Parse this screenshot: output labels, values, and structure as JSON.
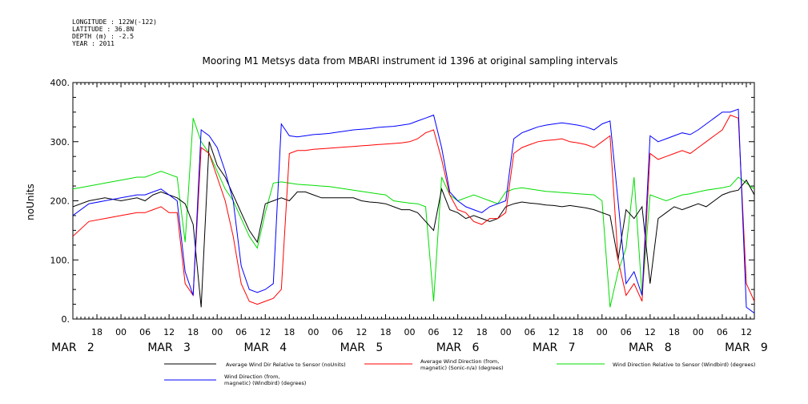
{
  "meta": {
    "longitude": "LONGITUDE : 122W(-122)",
    "latitude": "LATITUDE : 36.8N",
    "depth": "DEPTH (m) : -2.5",
    "year": "YEAR : 2011"
  },
  "chart_data": {
    "type": "line",
    "title": "Mooring M1 Metsys data from MBARI instrument id 1396 at original sampling intervals",
    "ylabel": "noUnits",
    "xlabel": "",
    "ylim": [
      0,
      400
    ],
    "yticks": [
      "0.",
      "100.",
      "200.",
      "300.",
      "400."
    ],
    "xlim_hours": [
      12,
      182
    ],
    "hour_ticks": [
      {
        "h": 18,
        "label": "18"
      },
      {
        "h": 24,
        "label": "00"
      },
      {
        "h": 30,
        "label": "06"
      },
      {
        "h": 36,
        "label": "12"
      },
      {
        "h": 42,
        "label": "18"
      },
      {
        "h": 48,
        "label": "00"
      },
      {
        "h": 54,
        "label": "06"
      },
      {
        "h": 60,
        "label": "12"
      },
      {
        "h": 66,
        "label": "18"
      },
      {
        "h": 72,
        "label": "00"
      },
      {
        "h": 78,
        "label": "06"
      },
      {
        "h": 84,
        "label": "12"
      },
      {
        "h": 90,
        "label": "18"
      },
      {
        "h": 96,
        "label": "00"
      },
      {
        "h": 102,
        "label": "06"
      },
      {
        "h": 108,
        "label": "12"
      },
      {
        "h": 114,
        "label": "18"
      },
      {
        "h": 120,
        "label": "00"
      },
      {
        "h": 126,
        "label": "06"
      },
      {
        "h": 132,
        "label": "12"
      },
      {
        "h": 138,
        "label": "18"
      },
      {
        "h": 144,
        "label": "00"
      },
      {
        "h": 150,
        "label": "06"
      },
      {
        "h": 156,
        "label": "12"
      },
      {
        "h": 162,
        "label": "18"
      },
      {
        "h": 168,
        "label": "00"
      },
      {
        "h": 174,
        "label": "06"
      },
      {
        "h": 180,
        "label": "12"
      }
    ],
    "day_labels": [
      {
        "h": 12,
        "label": "MAR   2"
      },
      {
        "h": 36,
        "label": "MAR   3"
      },
      {
        "h": 60,
        "label": "MAR   4"
      },
      {
        "h": 84,
        "label": "MAR   5"
      },
      {
        "h": 108,
        "label": "MAR   6"
      },
      {
        "h": 132,
        "label": "MAR   7"
      },
      {
        "h": 156,
        "label": "MAR   8"
      },
      {
        "h": 180,
        "label": "MAR   9"
      }
    ],
    "series": [
      {
        "name": "Average Wind Dir Relative to Sensor (noUnits)",
        "color": "#000000",
        "x": [
          12,
          16,
          20,
          24,
          28,
          30,
          32,
          34,
          36,
          38,
          40,
          42,
          44,
          46,
          48,
          50,
          52,
          54,
          56,
          58,
          60,
          62,
          64,
          66,
          68,
          70,
          72,
          74,
          76,
          78,
          80,
          82,
          84,
          86,
          88,
          90,
          92,
          94,
          96,
          98,
          100,
          102,
          104,
          106,
          108,
          110,
          112,
          114,
          116,
          118,
          120,
          122,
          124,
          126,
          128,
          130,
          132,
          134,
          136,
          138,
          140,
          142,
          144,
          146,
          148,
          150,
          152,
          154,
          156,
          158,
          160,
          162,
          164,
          166,
          168,
          170,
          172,
          174,
          176,
          178,
          180,
          182
        ],
        "y": [
          190,
          200,
          205,
          200,
          205,
          200,
          210,
          215,
          210,
          205,
          195,
          160,
          20,
          300,
          260,
          240,
          210,
          180,
          150,
          130,
          195,
          200,
          205,
          200,
          215,
          215,
          210,
          205,
          205,
          205,
          205,
          205,
          200,
          198,
          197,
          195,
          190,
          185,
          185,
          180,
          165,
          150,
          220,
          185,
          180,
          170,
          175,
          170,
          165,
          170,
          190,
          195,
          198,
          196,
          195,
          193,
          192,
          190,
          192,
          190,
          188,
          185,
          180,
          175,
          100,
          185,
          170,
          190,
          60,
          170,
          180,
          190,
          185,
          190,
          195,
          190,
          200,
          210,
          215,
          218,
          235,
          210
        ]
      },
      {
        "name": "Average Wind Direction (from, magnetic) (Sonic-n/a) (degrees)",
        "color": "#ff0000",
        "x": [
          12,
          16,
          20,
          24,
          28,
          30,
          32,
          34,
          36,
          38,
          40,
          42,
          44,
          46,
          48,
          50,
          52,
          54,
          56,
          58,
          60,
          62,
          64,
          66,
          68,
          70,
          72,
          74,
          76,
          78,
          80,
          82,
          84,
          86,
          88,
          90,
          92,
          94,
          96,
          98,
          100,
          102,
          104,
          106,
          108,
          110,
          112,
          114,
          116,
          118,
          120,
          122,
          124,
          126,
          128,
          130,
          132,
          134,
          136,
          138,
          140,
          142,
          144,
          146,
          148,
          150,
          152,
          154,
          156,
          158,
          160,
          162,
          164,
          166,
          168,
          170,
          172,
          174,
          176,
          178,
          180,
          182
        ],
        "y": [
          140,
          165,
          170,
          175,
          180,
          180,
          185,
          190,
          180,
          180,
          60,
          40,
          290,
          280,
          240,
          200,
          140,
          60,
          30,
          25,
          30,
          35,
          50,
          280,
          285,
          285,
          287,
          288,
          289,
          290,
          291,
          292,
          293,
          294,
          295,
          296,
          297,
          298,
          300,
          305,
          315,
          320,
          270,
          210,
          185,
          180,
          165,
          160,
          170,
          170,
          180,
          280,
          290,
          295,
          300,
          302,
          303,
          305,
          300,
          298,
          295,
          290,
          300,
          310,
          100,
          40,
          60,
          30,
          280,
          270,
          275,
          280,
          285,
          280,
          290,
          300,
          310,
          320,
          345,
          340,
          60,
          30
        ]
      },
      {
        "name": "Wind Direction Relative to Sensor (Windbird) (degrees)",
        "color": "#00dd00",
        "x": [
          12,
          16,
          20,
          24,
          28,
          30,
          32,
          34,
          36,
          38,
          40,
          42,
          44,
          46,
          48,
          50,
          52,
          54,
          56,
          58,
          60,
          62,
          64,
          66,
          68,
          70,
          72,
          74,
          76,
          78,
          80,
          82,
          84,
          86,
          88,
          90,
          92,
          94,
          96,
          98,
          100,
          102,
          104,
          106,
          108,
          110,
          112,
          114,
          116,
          118,
          120,
          122,
          124,
          126,
          128,
          130,
          132,
          134,
          136,
          138,
          140,
          142,
          144,
          146,
          148,
          150,
          152,
          154,
          156,
          158,
          160,
          162,
          164,
          166,
          168,
          170,
          172,
          174,
          176,
          178,
          180,
          182
        ],
        "y": [
          220,
          225,
          230,
          235,
          240,
          240,
          245,
          250,
          245,
          240,
          130,
          340,
          300,
          280,
          250,
          220,
          200,
          170,
          140,
          120,
          180,
          230,
          232,
          230,
          228,
          227,
          226,
          225,
          224,
          222,
          220,
          218,
          216,
          214,
          212,
          210,
          200,
          198,
          196,
          195,
          190,
          30,
          240,
          210,
          200,
          205,
          210,
          205,
          200,
          195,
          215,
          220,
          222,
          220,
          218,
          216,
          215,
          214,
          213,
          212,
          211,
          210,
          200,
          20,
          80,
          120,
          240,
          40,
          210,
          205,
          200,
          205,
          210,
          212,
          215,
          218,
          220,
          222,
          225,
          240,
          230,
          220
        ]
      },
      {
        "name": "Wind Direction (from, magnetic) (Windbird) (degrees)",
        "color": "#0000ff",
        "x": [
          12,
          16,
          20,
          24,
          28,
          30,
          32,
          34,
          36,
          38,
          40,
          42,
          44,
          46,
          48,
          50,
          52,
          54,
          56,
          58,
          60,
          62,
          64,
          66,
          68,
          70,
          72,
          74,
          76,
          78,
          80,
          82,
          84,
          86,
          88,
          90,
          92,
          94,
          96,
          98,
          100,
          102,
          104,
          106,
          108,
          110,
          112,
          114,
          116,
          118,
          120,
          122,
          124,
          126,
          128,
          130,
          132,
          134,
          136,
          138,
          140,
          142,
          144,
          146,
          148,
          150,
          152,
          154,
          156,
          158,
          160,
          162,
          164,
          166,
          168,
          170,
          172,
          174,
          176,
          178,
          180,
          182
        ],
        "y": [
          175,
          195,
          200,
          205,
          210,
          210,
          215,
          220,
          210,
          200,
          80,
          40,
          320,
          310,
          290,
          250,
          200,
          90,
          50,
          45,
          50,
          60,
          330,
          310,
          308,
          310,
          312,
          313,
          314,
          316,
          318,
          320,
          321,
          322,
          324,
          325,
          326,
          328,
          330,
          335,
          340,
          345,
          290,
          215,
          200,
          190,
          185,
          180,
          190,
          195,
          200,
          305,
          315,
          320,
          325,
          328,
          330,
          332,
          330,
          328,
          325,
          320,
          330,
          335,
          200,
          60,
          80,
          40,
          310,
          300,
          305,
          310,
          315,
          312,
          320,
          330,
          340,
          350,
          350,
          355,
          20,
          10
        ]
      }
    ],
    "legend": [
      {
        "label": "Average Wind Dir Relative to Sensor (noUnits)",
        "color": "#000000"
      },
      {
        "label": "Average Wind Direction (from, magnetic) (Sonic-n/a) (degrees)",
        "color": "#ff0000"
      },
      {
        "label": "Wind Direction Relative to Sensor (Windbird) (degrees)",
        "color": "#00dd00"
      },
      {
        "label": "Wind Direction (from, magnetic) (Windbird) (degrees)",
        "color": "#0000ff"
      }
    ]
  }
}
